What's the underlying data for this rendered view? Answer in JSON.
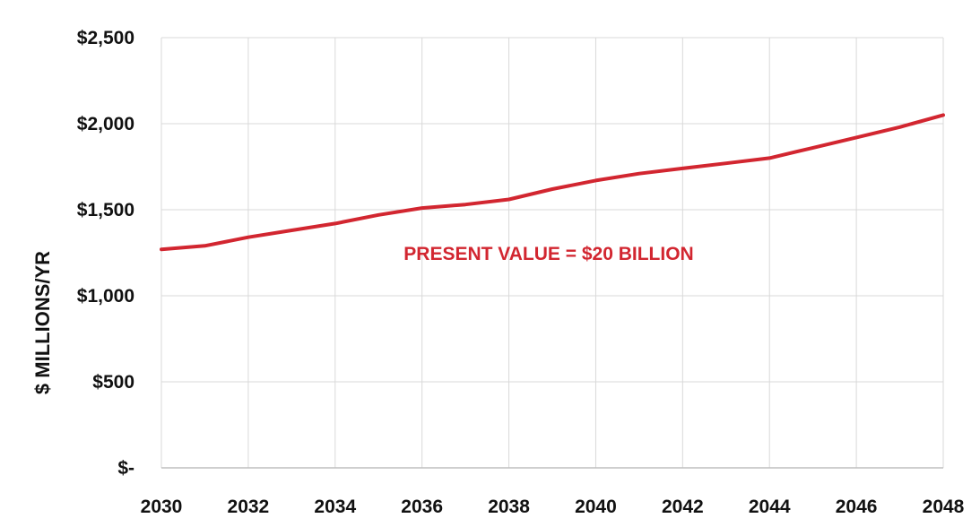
{
  "chart_data": {
    "type": "line",
    "title": "",
    "xlabel": "",
    "ylabel": "$ MILLIONS/YR",
    "annotation": "PRESENT VALUE = $20 BILLION",
    "ylim": [
      0,
      2500
    ],
    "xlim": [
      2030,
      2048
    ],
    "grid": true,
    "legend": "none",
    "line_color": "#d22630",
    "annotation_color": "#d22630",
    "x_ticks": [
      2030,
      2032,
      2034,
      2036,
      2038,
      2040,
      2042,
      2044,
      2046,
      2048
    ],
    "x_tick_labels": [
      "2030",
      "2032",
      "2034",
      "2036",
      "2038",
      "2040",
      "2042",
      "2044",
      "2046",
      "2048"
    ],
    "y_ticks": [
      0,
      500,
      1000,
      1500,
      2000,
      2500
    ],
    "y_tick_labels": [
      "$-",
      "$500",
      "$1,000",
      "$1,500",
      "$2,000",
      "$2,500"
    ],
    "series": [
      {
        "x": [
          2030,
          2031,
          2032,
          2033,
          2034,
          2035,
          2036,
          2037,
          2038,
          2039,
          2040,
          2041,
          2042,
          2043,
          2044,
          2045,
          2046,
          2047,
          2048
        ],
        "values": [
          1270,
          1290,
          1340,
          1380,
          1420,
          1470,
          1510,
          1530,
          1560,
          1620,
          1670,
          1710,
          1740,
          1770,
          1800,
          1860,
          1920,
          1980,
          2050
        ]
      }
    ]
  }
}
